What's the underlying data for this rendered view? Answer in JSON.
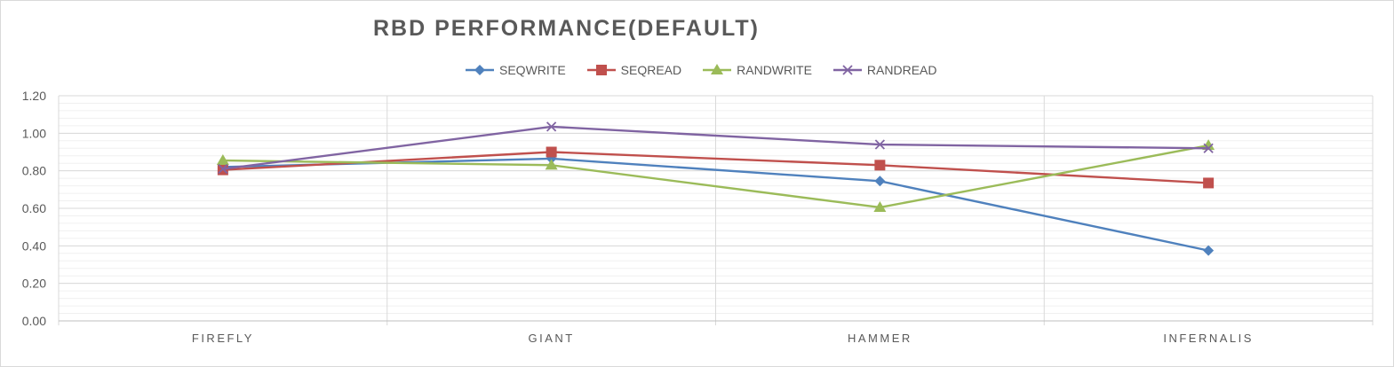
{
  "chart_data": {
    "type": "line",
    "title": "RBD PERFORMANCE(DEFAULT)",
    "xlabel": "",
    "ylabel": "",
    "categories": [
      "FIREFLY",
      "GIANT",
      "HAMMER",
      "INFERNALIS"
    ],
    "ylim": [
      0,
      1.2
    ],
    "yticks": [
      "0.00",
      "0.20",
      "0.40",
      "0.60",
      "0.80",
      "1.00",
      "1.20"
    ],
    "grid": true,
    "legend_position": "top",
    "series": [
      {
        "name": "SEQWRITE",
        "color": "#4f81bd",
        "marker": "diamond",
        "values": [
          0.82,
          0.865,
          0.745,
          0.375
        ]
      },
      {
        "name": "SEQREAD",
        "color": "#c0504d",
        "marker": "square",
        "values": [
          0.805,
          0.9,
          0.83,
          0.735
        ]
      },
      {
        "name": "RANDWRITE",
        "color": "#9bbb59",
        "marker": "triangle",
        "values": [
          0.855,
          0.83,
          0.605,
          0.935
        ]
      },
      {
        "name": "RANDREAD",
        "color": "#8064a2",
        "marker": "x",
        "values": [
          0.81,
          1.035,
          0.94,
          0.92
        ]
      }
    ]
  }
}
